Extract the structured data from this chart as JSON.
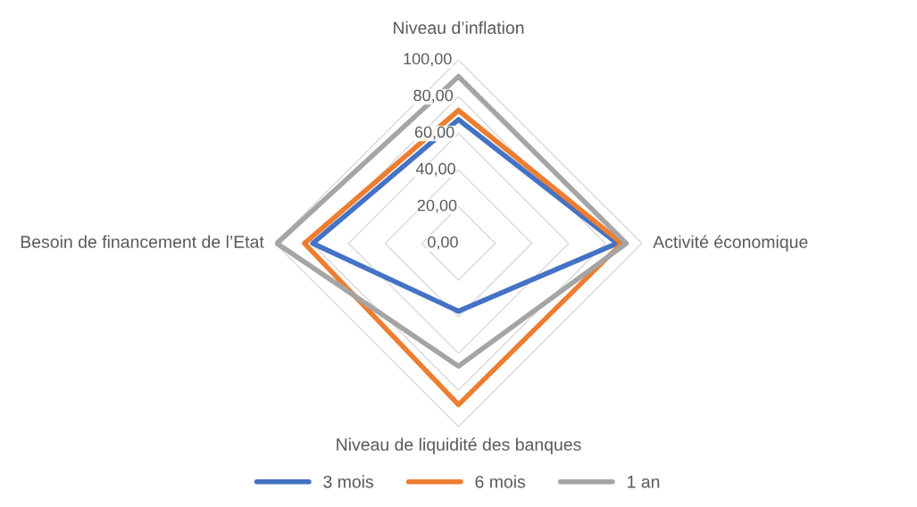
{
  "chart_data": {
    "type": "radar",
    "categories": [
      "Niveau d’inflation",
      "Activité économique",
      "Niveau de liquidité des banques",
      "Besoin de financement de l’Etat"
    ],
    "series": [
      {
        "name": "3 mois",
        "color": "#4472c4",
        "values": [
          67.5,
          86.5,
          37,
          79.5
        ]
      },
      {
        "name": "6 mois",
        "color": "#ed7d31",
        "values": [
          72.5,
          89,
          88,
          84
        ]
      },
      {
        "name": "1 an",
        "color": "#a5a5a5",
        "values": [
          91,
          91.5,
          67,
          99
        ]
      }
    ],
    "ylim": [
      0,
      100
    ],
    "yticks": [
      {
        "value": 0,
        "label": "0,00"
      },
      {
        "value": 20,
        "label": "20,00"
      },
      {
        "value": 40,
        "label": "40,00"
      },
      {
        "value": 60,
        "label": "60,00"
      },
      {
        "value": 80,
        "label": "80,00"
      },
      {
        "value": 100,
        "label": "100,00"
      }
    ],
    "grid": true,
    "legend": "bottom",
    "marker": "none",
    "line_style": "solid"
  }
}
